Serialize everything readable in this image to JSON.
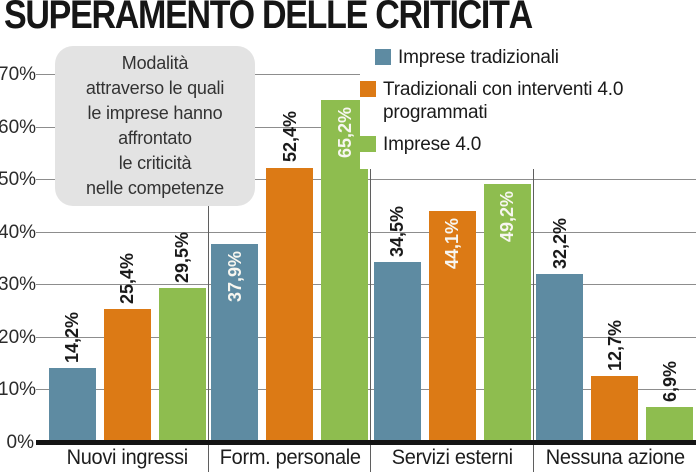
{
  "title": "SUPERAMENTO DELLE CRITICITÀ",
  "annotation": "Modalità\nattraverso le quali\nle imprese hanno\naffrontato\nle criticità\nnelle competenze",
  "colors": {
    "blue": "#5e8ba2",
    "orange": "#dc7a15",
    "green": "#8ebd4f"
  },
  "legend": [
    {
      "label": "Imprese tradizionali",
      "color": "blue",
      "indent": true
    },
    {
      "label": "Tradizionali con interventi 4.0 programmati",
      "color": "orange",
      "indent": false
    },
    {
      "label": "Imprese 4.0",
      "color": "green",
      "indent": false
    }
  ],
  "y_axis": {
    "ticks": [
      "0%",
      "10%",
      "20%",
      "30%",
      "40%",
      "50%",
      "60%",
      "70%"
    ]
  },
  "chart_data": {
    "type": "bar",
    "title": "SUPERAMENTO DELLE CRITICITÀ",
    "categories": [
      "Nuovi ingressi",
      "Form. personale",
      "Servizi esterni",
      "Nessuna azione"
    ],
    "series": [
      {
        "name": "Imprese tradizionali",
        "color": "blue",
        "values": [
          14.2,
          37.9,
          34.5,
          32.2
        ],
        "labels": [
          "14,2%",
          "37,9%",
          "34,5%",
          "32,2%"
        ],
        "label_inside": [
          false,
          true,
          false,
          false
        ]
      },
      {
        "name": "Tradizionali con interventi 4.0 programmati",
        "color": "orange",
        "values": [
          25.4,
          52.4,
          44.1,
          12.7
        ],
        "labels": [
          "25,4%",
          "52,4%",
          "44,1%",
          "12,7%"
        ],
        "label_inside": [
          false,
          false,
          true,
          false
        ]
      },
      {
        "name": "Imprese 4.0",
        "color": "green",
        "values": [
          29.5,
          65.2,
          49.2,
          6.9
        ],
        "labels": [
          "29,5%",
          "65,2%",
          "49,2%",
          "6,9%"
        ],
        "label_inside": [
          false,
          true,
          true,
          false
        ]
      }
    ],
    "xlabel": "",
    "ylabel": "",
    "ylim": [
      0,
      70
    ],
    "grid": true,
    "legend_position": "top-right",
    "value_label_format": "italian-decimal-percent"
  }
}
